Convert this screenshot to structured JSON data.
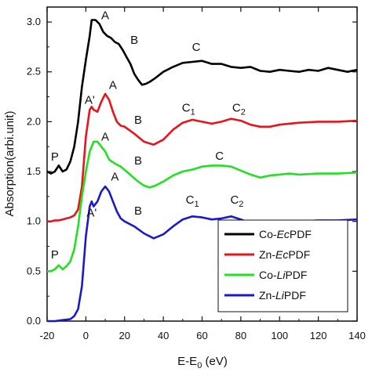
{
  "chart_data": {
    "type": "line",
    "xlabel_main": "E-E",
    "xlabel_sub": "0",
    "xlabel_unit": " (eV)",
    "ylabel": "Absorption(arbi.unit)",
    "xlim": [
      -20,
      140
    ],
    "ylim": [
      0.0,
      3.15
    ],
    "x_ticks": [
      -20,
      0,
      20,
      40,
      60,
      80,
      100,
      120,
      140
    ],
    "y_ticks": [
      "0.0",
      "0.5",
      "1.0",
      "1.5",
      "2.0",
      "2.5",
      "3.0"
    ],
    "grid": false,
    "legend_position": "bottom-right",
    "series": [
      {
        "legend_prefix": "Co-",
        "legend_italic": "Ec",
        "legend_suffix": "PDF",
        "color": "#000000",
        "points": [
          [
            -20,
            1.5
          ],
          [
            -18,
            1.48
          ],
          [
            -16,
            1.5
          ],
          [
            -14,
            1.56
          ],
          [
            -12,
            1.5
          ],
          [
            -10,
            1.52
          ],
          [
            -8,
            1.6
          ],
          [
            -6,
            1.75
          ],
          [
            -4,
            2.0
          ],
          [
            -2,
            2.35
          ],
          [
            0,
            2.62
          ],
          [
            2,
            2.86
          ],
          [
            3,
            3.02
          ],
          [
            5,
            3.02
          ],
          [
            7,
            2.98
          ],
          [
            9,
            2.9
          ],
          [
            11,
            2.86
          ],
          [
            13,
            2.84
          ],
          [
            15,
            2.8
          ],
          [
            17,
            2.78
          ],
          [
            19,
            2.72
          ],
          [
            21,
            2.65
          ],
          [
            23,
            2.58
          ],
          [
            25,
            2.48
          ],
          [
            27,
            2.42
          ],
          [
            29,
            2.37
          ],
          [
            31,
            2.38
          ],
          [
            33,
            2.4
          ],
          [
            36,
            2.44
          ],
          [
            40,
            2.5
          ],
          [
            45,
            2.55
          ],
          [
            50,
            2.59
          ],
          [
            55,
            2.6
          ],
          [
            60,
            2.61
          ],
          [
            65,
            2.58
          ],
          [
            70,
            2.58
          ],
          [
            75,
            2.55
          ],
          [
            80,
            2.54
          ],
          [
            85,
            2.55
          ],
          [
            90,
            2.51
          ],
          [
            95,
            2.5
          ],
          [
            100,
            2.52
          ],
          [
            105,
            2.51
          ],
          [
            110,
            2.5
          ],
          [
            115,
            2.52
          ],
          [
            120,
            2.51
          ],
          [
            125,
            2.54
          ],
          [
            130,
            2.52
          ],
          [
            135,
            2.5
          ],
          [
            140,
            2.52
          ]
        ]
      },
      {
        "legend_prefix": "Zn-",
        "legend_italic": "Ec",
        "legend_suffix": "PDF",
        "color": "#e8141a",
        "points": [
          [
            -20,
            1.0
          ],
          [
            -18,
            1.0
          ],
          [
            -16,
            1.01
          ],
          [
            -14,
            1.01
          ],
          [
            -12,
            1.02
          ],
          [
            -10,
            1.03
          ],
          [
            -8,
            1.04
          ],
          [
            -6,
            1.06
          ],
          [
            -4,
            1.12
          ],
          [
            -2,
            1.35
          ],
          [
            0,
            1.85
          ],
          [
            2,
            2.12
          ],
          [
            3,
            2.15
          ],
          [
            4,
            2.12
          ],
          [
            6,
            2.1
          ],
          [
            8,
            2.2
          ],
          [
            10,
            2.28
          ],
          [
            12,
            2.22
          ],
          [
            14,
            2.1
          ],
          [
            16,
            2.0
          ],
          [
            18,
            1.96
          ],
          [
            20,
            1.95
          ],
          [
            25,
            1.88
          ],
          [
            30,
            1.8
          ],
          [
            35,
            1.77
          ],
          [
            40,
            1.82
          ],
          [
            45,
            1.92
          ],
          [
            50,
            1.99
          ],
          [
            55,
            2.02
          ],
          [
            60,
            2.0
          ],
          [
            65,
            1.98
          ],
          [
            70,
            2.0
          ],
          [
            75,
            2.03
          ],
          [
            80,
            2.01
          ],
          [
            85,
            1.97
          ],
          [
            90,
            1.95
          ],
          [
            95,
            1.95
          ],
          [
            100,
            1.97
          ],
          [
            110,
            1.99
          ],
          [
            120,
            2.0
          ],
          [
            130,
            2.0
          ],
          [
            140,
            2.01
          ]
        ]
      },
      {
        "legend_prefix": "Co-",
        "legend_italic": "Li",
        "legend_suffix": "PDF",
        "color": "#22e022",
        "points": [
          [
            -20,
            0.5
          ],
          [
            -18,
            0.5
          ],
          [
            -16,
            0.52
          ],
          [
            -14,
            0.56
          ],
          [
            -12,
            0.52
          ],
          [
            -10,
            0.55
          ],
          [
            -8,
            0.6
          ],
          [
            -6,
            0.72
          ],
          [
            -4,
            0.95
          ],
          [
            -2,
            1.25
          ],
          [
            0,
            1.5
          ],
          [
            2,
            1.7
          ],
          [
            4,
            1.8
          ],
          [
            6,
            1.8
          ],
          [
            8,
            1.75
          ],
          [
            10,
            1.7
          ],
          [
            12,
            1.62
          ],
          [
            15,
            1.58
          ],
          [
            18,
            1.55
          ],
          [
            21,
            1.5
          ],
          [
            24,
            1.45
          ],
          [
            27,
            1.4
          ],
          [
            30,
            1.36
          ],
          [
            33,
            1.34
          ],
          [
            36,
            1.36
          ],
          [
            40,
            1.4
          ],
          [
            45,
            1.46
          ],
          [
            50,
            1.5
          ],
          [
            55,
            1.52
          ],
          [
            60,
            1.55
          ],
          [
            65,
            1.56
          ],
          [
            70,
            1.56
          ],
          [
            75,
            1.55
          ],
          [
            80,
            1.51
          ],
          [
            85,
            1.47
          ],
          [
            90,
            1.44
          ],
          [
            95,
            1.46
          ],
          [
            100,
            1.47
          ],
          [
            105,
            1.48
          ],
          [
            110,
            1.47
          ],
          [
            120,
            1.48
          ],
          [
            130,
            1.48
          ],
          [
            140,
            1.49
          ]
        ]
      },
      {
        "legend_prefix": "Zn-",
        "legend_italic": "Li",
        "legend_suffix": "PDF",
        "color": "#1a1acc",
        "points": [
          [
            -20,
            0.0
          ],
          [
            -16,
            0.0
          ],
          [
            -12,
            0.01
          ],
          [
            -8,
            0.02
          ],
          [
            -6,
            0.05
          ],
          [
            -4,
            0.12
          ],
          [
            -2,
            0.35
          ],
          [
            0,
            0.85
          ],
          [
            2,
            1.15
          ],
          [
            3,
            1.2
          ],
          [
            4,
            1.15
          ],
          [
            6,
            1.2
          ],
          [
            8,
            1.3
          ],
          [
            10,
            1.35
          ],
          [
            12,
            1.3
          ],
          [
            14,
            1.2
          ],
          [
            16,
            1.1
          ],
          [
            18,
            1.03
          ],
          [
            20,
            1.0
          ],
          [
            25,
            0.95
          ],
          [
            30,
            0.88
          ],
          [
            35,
            0.83
          ],
          [
            40,
            0.87
          ],
          [
            45,
            0.95
          ],
          [
            50,
            1.02
          ],
          [
            55,
            1.05
          ],
          [
            60,
            1.04
          ],
          [
            65,
            1.02
          ],
          [
            70,
            1.03
          ],
          [
            75,
            1.05
          ],
          [
            80,
            1.02
          ],
          [
            85,
            0.98
          ],
          [
            90,
            0.97
          ],
          [
            95,
            0.98
          ],
          [
            100,
            0.99
          ],
          [
            110,
            1.0
          ],
          [
            120,
            1.01
          ],
          [
            130,
            1.01
          ],
          [
            140,
            1.02
          ]
        ]
      }
    ],
    "annotations": [
      {
        "text": "A",
        "x": 10,
        "y": 3.03
      },
      {
        "text": "B",
        "x": 25,
        "y": 2.78
      },
      {
        "text": "C",
        "x": 57,
        "y": 2.71
      },
      {
        "text": "A'",
        "x": 2,
        "y": 2.18
      },
      {
        "text": "A",
        "x": 14,
        "y": 2.33
      },
      {
        "text": "B",
        "x": 27,
        "y": 1.98
      },
      {
        "text": "C",
        "x": 53,
        "y": 2.1,
        "sub": "1"
      },
      {
        "text": "C",
        "x": 79,
        "y": 2.1,
        "sub": "2"
      },
      {
        "text": "P",
        "x": -16,
        "y": 1.61
      },
      {
        "text": "A",
        "x": 10,
        "y": 1.81
      },
      {
        "text": "B",
        "x": 27,
        "y": 1.57
      },
      {
        "text": "C",
        "x": 69,
        "y": 1.62
      },
      {
        "text": "A",
        "x": 15,
        "y": 1.41
      },
      {
        "text": "A'",
        "x": 3,
        "y": 1.05
      },
      {
        "text": "B",
        "x": 27,
        "y": 1.07
      },
      {
        "text": "C",
        "x": 55,
        "y": 1.18,
        "sub": "1"
      },
      {
        "text": "C",
        "x": 78,
        "y": 1.18,
        "sub": "2"
      },
      {
        "text": "P",
        "x": -16,
        "y": 0.63
      }
    ]
  }
}
